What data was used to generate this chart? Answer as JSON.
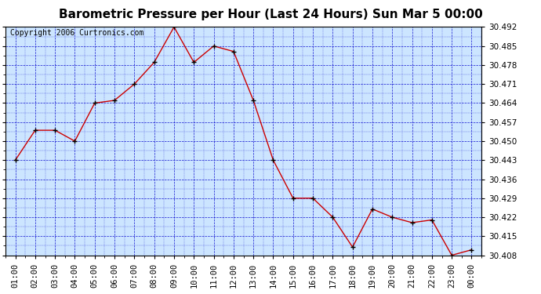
{
  "title": "Barometric Pressure per Hour (Last 24 Hours) Sun Mar 5 00:00",
  "copyright": "Copyright 2006 Curtronics.com",
  "x_labels": [
    "01:00",
    "02:00",
    "03:00",
    "04:00",
    "05:00",
    "06:00",
    "07:00",
    "08:00",
    "09:00",
    "10:00",
    "11:00",
    "12:00",
    "13:00",
    "14:00",
    "15:00",
    "16:00",
    "17:00",
    "18:00",
    "19:00",
    "20:00",
    "21:00",
    "22:00",
    "23:00",
    "00:00"
  ],
  "x_values": [
    1,
    2,
    3,
    4,
    5,
    6,
    7,
    8,
    9,
    10,
    11,
    12,
    13,
    14,
    15,
    16,
    17,
    18,
    19,
    20,
    21,
    22,
    23,
    24
  ],
  "y_values": [
    30.443,
    30.454,
    30.454,
    30.45,
    30.464,
    30.465,
    30.471,
    30.479,
    30.492,
    30.479,
    30.485,
    30.483,
    30.465,
    30.443,
    30.429,
    30.429,
    30.422,
    30.411,
    30.425,
    30.422,
    30.42,
    30.421,
    30.408,
    30.41
  ],
  "ylim_min": 30.408,
  "ylim_max": 30.492,
  "ytick_values": [
    30.408,
    30.415,
    30.422,
    30.429,
    30.436,
    30.443,
    30.45,
    30.457,
    30.464,
    30.471,
    30.478,
    30.485,
    30.492
  ],
  "line_color": "#cc0000",
  "marker_color": "#000000",
  "background_color": "#cce5ff",
  "grid_color": "#0000cc",
  "title_fontsize": 11,
  "copyright_fontsize": 7,
  "tick_fontsize": 7.5
}
